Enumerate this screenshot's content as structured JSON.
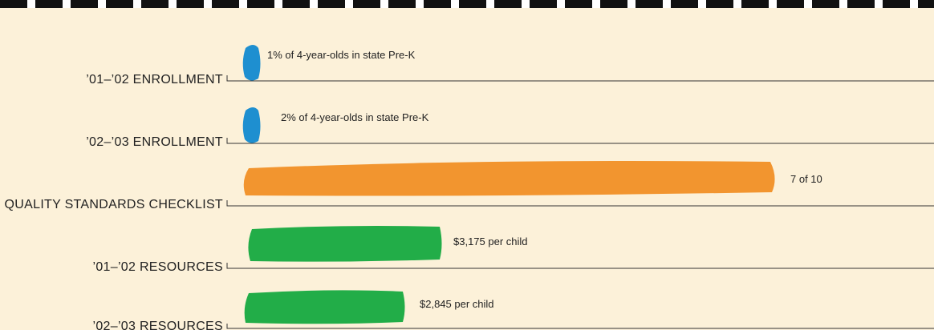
{
  "rows": [
    {
      "label": "’01–’02 ENROLLMENT",
      "note": "1% of 4-year-olds in state Pre-K"
    },
    {
      "label": "’02–’03 ENROLLMENT",
      "note": "2% of 4-year-olds in state Pre-K"
    },
    {
      "label": "QUALITY STANDARDS CHECKLIST",
      "note": "7 of 10"
    },
    {
      "label": "’01–’02 RESOURCES",
      "note": "$3,175 per child"
    },
    {
      "label": "’02–’03 RESOURCES",
      "note": "$2,845 per child"
    }
  ]
}
